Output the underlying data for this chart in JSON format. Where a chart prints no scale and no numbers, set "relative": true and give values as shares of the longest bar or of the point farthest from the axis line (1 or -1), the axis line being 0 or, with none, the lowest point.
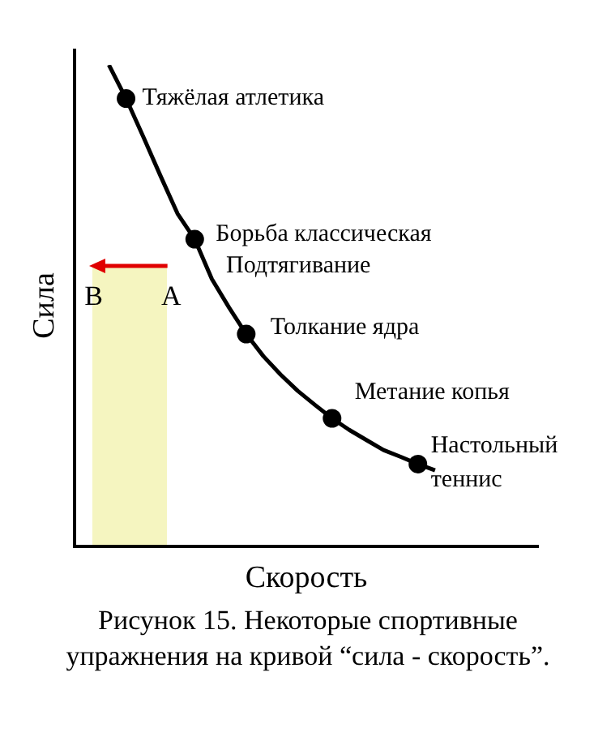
{
  "chart_data": {
    "type": "line",
    "relative": true,
    "title": "Рисунок 15. Некоторые спортивные упражнения на кривой “сила - скорость”.",
    "xlabel": "Скорость",
    "ylabel": "Сила",
    "grid": false,
    "legend": false,
    "line_style": "solid",
    "categories": [
      null,
      null,
      null,
      null,
      null,
      null,
      null,
      null,
      null,
      null,
      null,
      null,
      null,
      null,
      null,
      null,
      null,
      null,
      null,
      null,
      null,
      null,
      null,
      null,
      null,
      null,
      null,
      null
    ],
    "series": [
      {
        "color": "#000000",
        "values": [
          null,
          null,
          1,
          0.93,
          0.851,
          0.77,
          0.691,
          0.638,
          0.555,
          0.496,
          0.441,
          0.395,
          0.357,
          0.323,
          0.294,
          0.266,
          0.242,
          0.221,
          0.2,
          0.186,
          0.171,
          0.158,
          null,
          null,
          null,
          null,
          null,
          null
        ]
      }
    ],
    "annotations": [
      "Тяжёлая атлетика",
      "Борьба классическая",
      "Толкание ядра",
      "Метание копья",
      "Настольный теннис",
      "Подтягивание",
      "B",
      "A"
    ]
  }
}
